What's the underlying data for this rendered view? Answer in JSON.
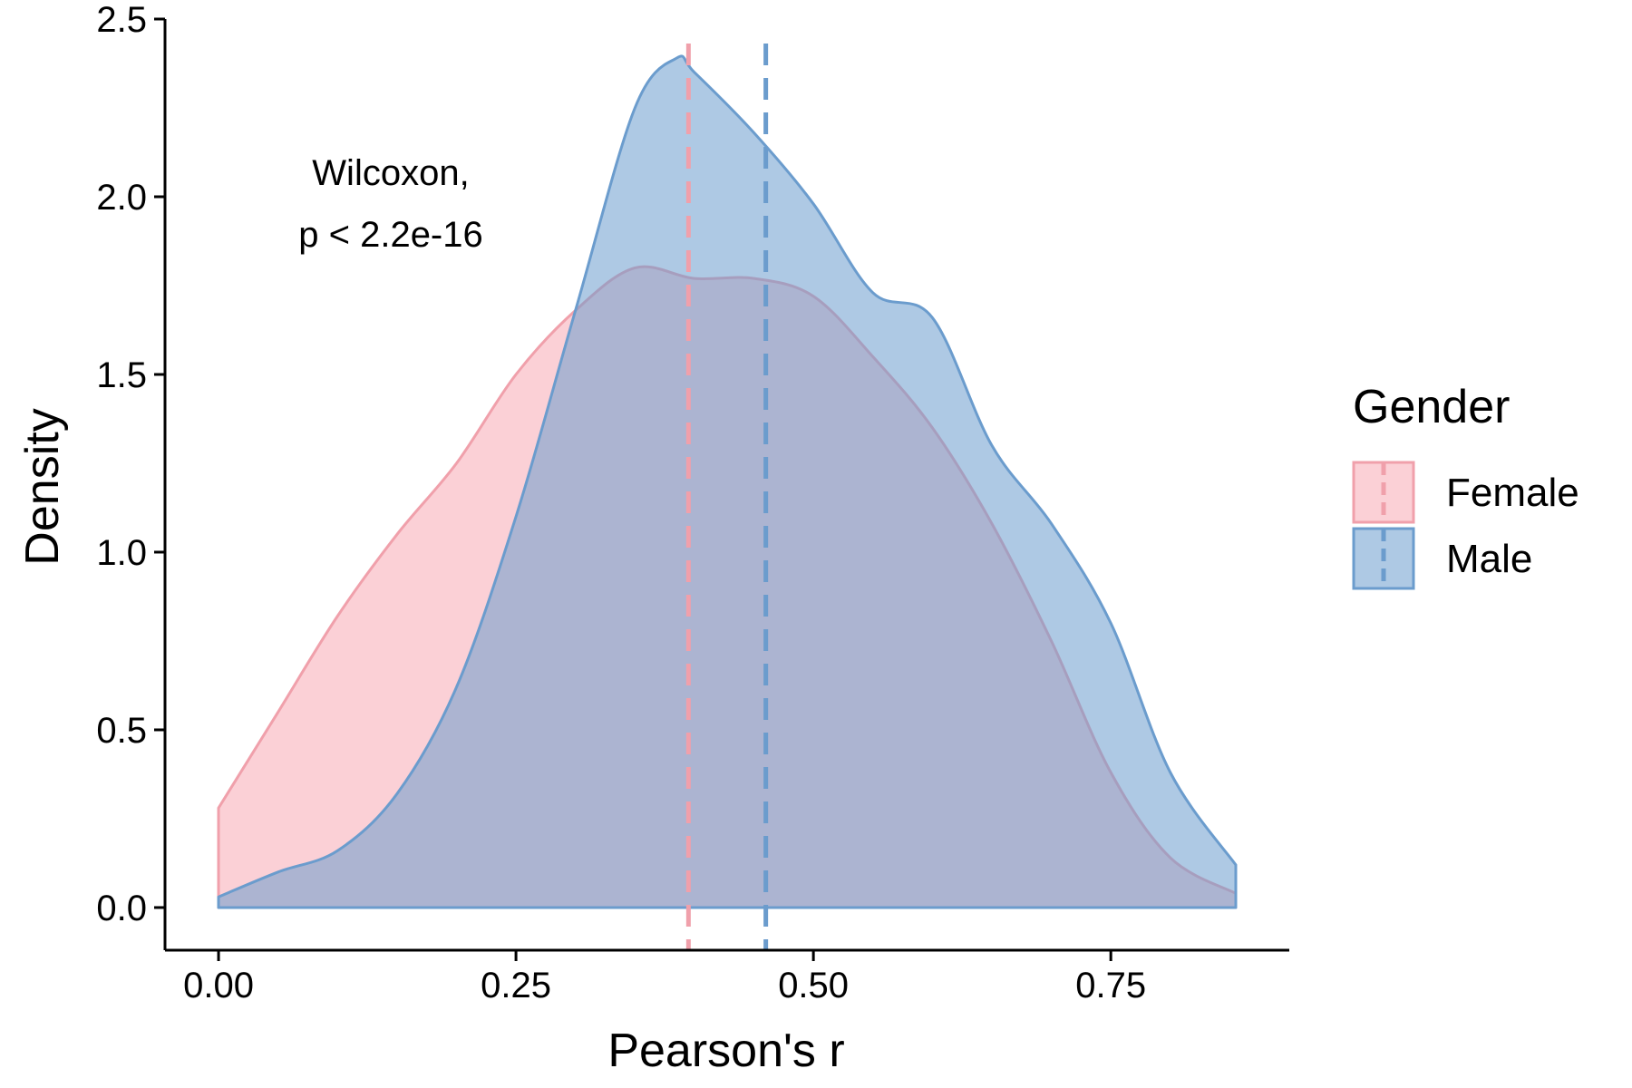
{
  "chart_data": {
    "type": "area",
    "xlabel": "Pearson's r",
    "ylabel": "Density",
    "xlim": [
      -0.045,
      0.9
    ],
    "ylim": [
      -0.12,
      2.5
    ],
    "xticks": [
      0.0,
      0.25,
      0.5,
      0.75
    ],
    "xtick_labels": [
      "0.00",
      "0.25",
      "0.50",
      "0.75"
    ],
    "yticks": [
      0.0,
      0.5,
      1.0,
      1.5,
      2.0,
      2.5
    ],
    "ytick_labels": [
      "0.0",
      "0.5",
      "1.0",
      "1.5",
      "2.0",
      "2.5"
    ],
    "grid": false,
    "annotation": [
      "Wilcoxon,",
      "p < 2.2e-16"
    ],
    "legend": {
      "title": "Gender",
      "position": "right",
      "entries": [
        "Female",
        "Male"
      ]
    },
    "series": [
      {
        "name": "Female",
        "fill": "#f7aab4",
        "stroke": "#f0a0ab",
        "mean_line": 0.395,
        "x": [
          0.0,
          0.05,
          0.1,
          0.15,
          0.2,
          0.25,
          0.3,
          0.35,
          0.4,
          0.45,
          0.5,
          0.55,
          0.6,
          0.65,
          0.7,
          0.75,
          0.8,
          0.855
        ],
        "y": [
          0.28,
          0.55,
          0.82,
          1.05,
          1.25,
          1.5,
          1.68,
          1.8,
          1.77,
          1.77,
          1.72,
          1.55,
          1.35,
          1.08,
          0.75,
          0.38,
          0.14,
          0.04
        ]
      },
      {
        "name": "Male",
        "fill": "#6b9ccd",
        "stroke": "#6b9ccd",
        "mean_line": 0.46,
        "x": [
          0.0,
          0.05,
          0.1,
          0.15,
          0.2,
          0.25,
          0.3,
          0.35,
          0.385,
          0.4,
          0.45,
          0.5,
          0.55,
          0.6,
          0.65,
          0.7,
          0.75,
          0.8,
          0.855
        ],
        "y": [
          0.03,
          0.1,
          0.16,
          0.32,
          0.62,
          1.1,
          1.68,
          2.25,
          2.39,
          2.35,
          2.18,
          1.98,
          1.73,
          1.66,
          1.3,
          1.08,
          0.8,
          0.38,
          0.12
        ]
      }
    ]
  }
}
